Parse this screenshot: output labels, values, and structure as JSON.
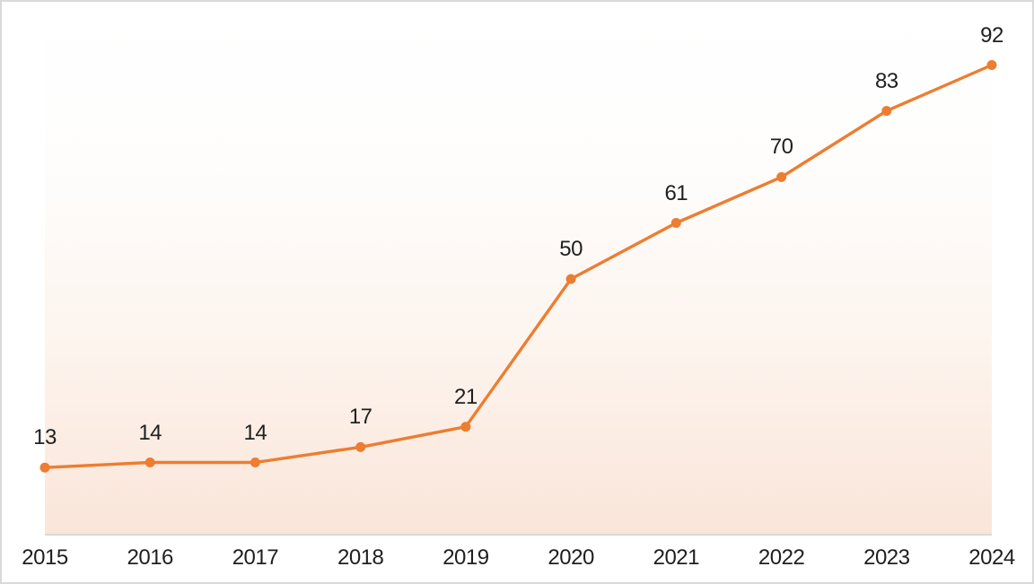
{
  "chart_data": {
    "type": "line",
    "categories": [
      "2015",
      "2016",
      "2017",
      "2018",
      "2019",
      "2020",
      "2021",
      "2022",
      "2023",
      "2024"
    ],
    "values": [
      13,
      14,
      14,
      17,
      21,
      50,
      61,
      70,
      83,
      92
    ],
    "data_labels": [
      13,
      14,
      14,
      17,
      21,
      50,
      61,
      70,
      83,
      92
    ],
    "ylim": [
      0,
      103
    ],
    "grid": false,
    "legend": false,
    "marker": "circle",
    "line_color": "#ED7D31"
  },
  "colors": {
    "accent": "#ED7D31",
    "text": "#1f1f1f",
    "axis_line": "#d9d9d9",
    "frame_border": "#d9d9d9",
    "plot_background_top": "#ffffff",
    "plot_background_bottom": "#fae5d9"
  }
}
